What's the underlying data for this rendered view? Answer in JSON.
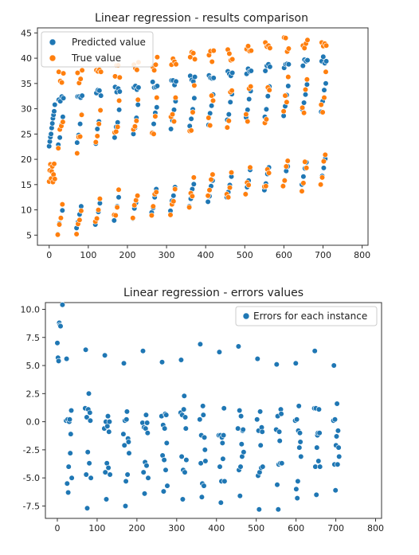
{
  "chart_data": [
    {
      "type": "scatter",
      "title": "Linear regression - results comparison",
      "xlabel": "",
      "ylabel": "",
      "xlim": [
        -30,
        815
      ],
      "ylim": [
        3.0,
        46.0
      ],
      "xticks": [
        0,
        100,
        200,
        300,
        400,
        500,
        600,
        700,
        800
      ],
      "yticks": [
        5,
        10,
        15,
        20,
        25,
        30,
        35,
        40,
        45
      ],
      "legend": {
        "position": "top-left"
      },
      "grid": false,
      "series": [
        {
          "name": "Predicted value",
          "color": "#1f77b4",
          "points": []
        },
        {
          "name": "True value",
          "color": "#ff7f0e",
          "points": []
        }
      ]
    },
    {
      "type": "scatter",
      "title": "Linear regression - errors values",
      "xlabel": "",
      "ylabel": "",
      "xlim": [
        -30,
        815
      ],
      "ylim": [
        -8.6,
        10.6
      ],
      "xticks": [
        0,
        100,
        200,
        300,
        400,
        500,
        600,
        700,
        800
      ],
      "yticks": [
        -7.5,
        -5.0,
        -2.5,
        0.0,
        2.5,
        5.0,
        7.5,
        10.0
      ],
      "legend": {
        "position": "top-right"
      },
      "grid": false,
      "series": [
        {
          "name": "Errors for each instance",
          "color": "#1f77b4",
          "points": []
        }
      ]
    }
  ]
}
